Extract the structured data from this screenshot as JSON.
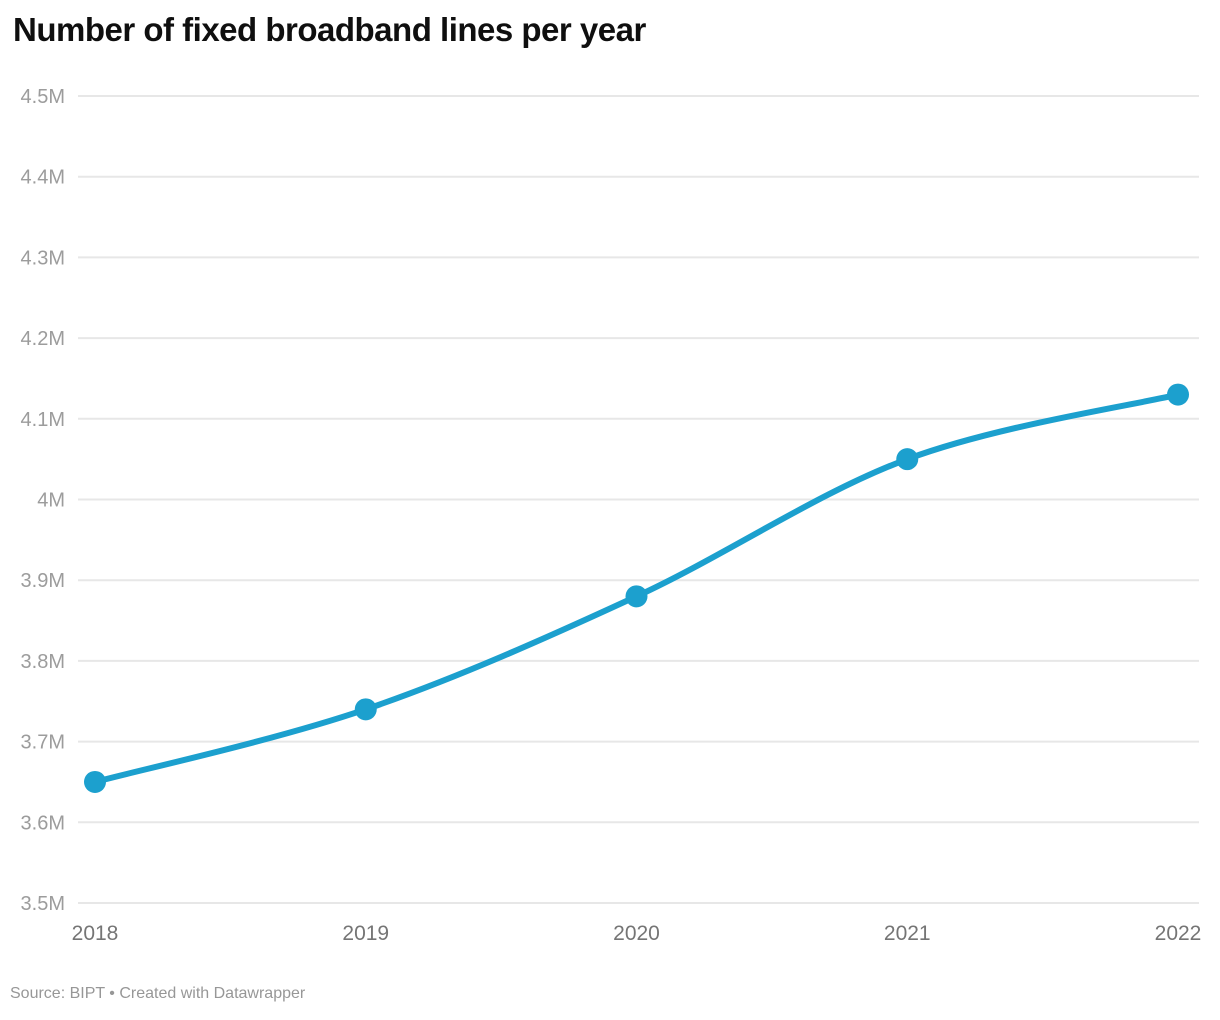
{
  "title": "Number of fixed broadband lines per year",
  "footer": {
    "text": "Source: BIPT • Created with Datawrapper"
  },
  "chart_data": {
    "type": "line",
    "title": "Number of fixed broadband lines per year",
    "x": [
      "2018",
      "2019",
      "2020",
      "2021",
      "2022"
    ],
    "series": [
      {
        "name": "Fixed broadband lines",
        "values": [
          3650000,
          3740000,
          3880000,
          4050000,
          4130000
        ]
      }
    ],
    "values_label_format": "millions",
    "ylim": [
      3500000,
      4500000
    ],
    "y_tick_values": [
      4500000,
      4400000,
      4300000,
      4200000,
      4100000,
      4000000,
      3900000,
      3800000,
      3700000,
      3600000,
      3500000
    ],
    "y_tick_labels": [
      "4.5M",
      "4.4M",
      "4.3M",
      "4.2M",
      "4.1M",
      "4M",
      "3.9M",
      "3.8M",
      "3.7M",
      "3.6M",
      "3.5M"
    ],
    "grid": true,
    "legend": "none",
    "line_color": "#1ca0ce",
    "marker_color": "#1ca0ce",
    "gridline_color": "#e7e7e7",
    "y_label_color": "#9c9c9c",
    "x_label_color": "#757575",
    "source": "Source: BIPT • Created with Datawrapper"
  }
}
